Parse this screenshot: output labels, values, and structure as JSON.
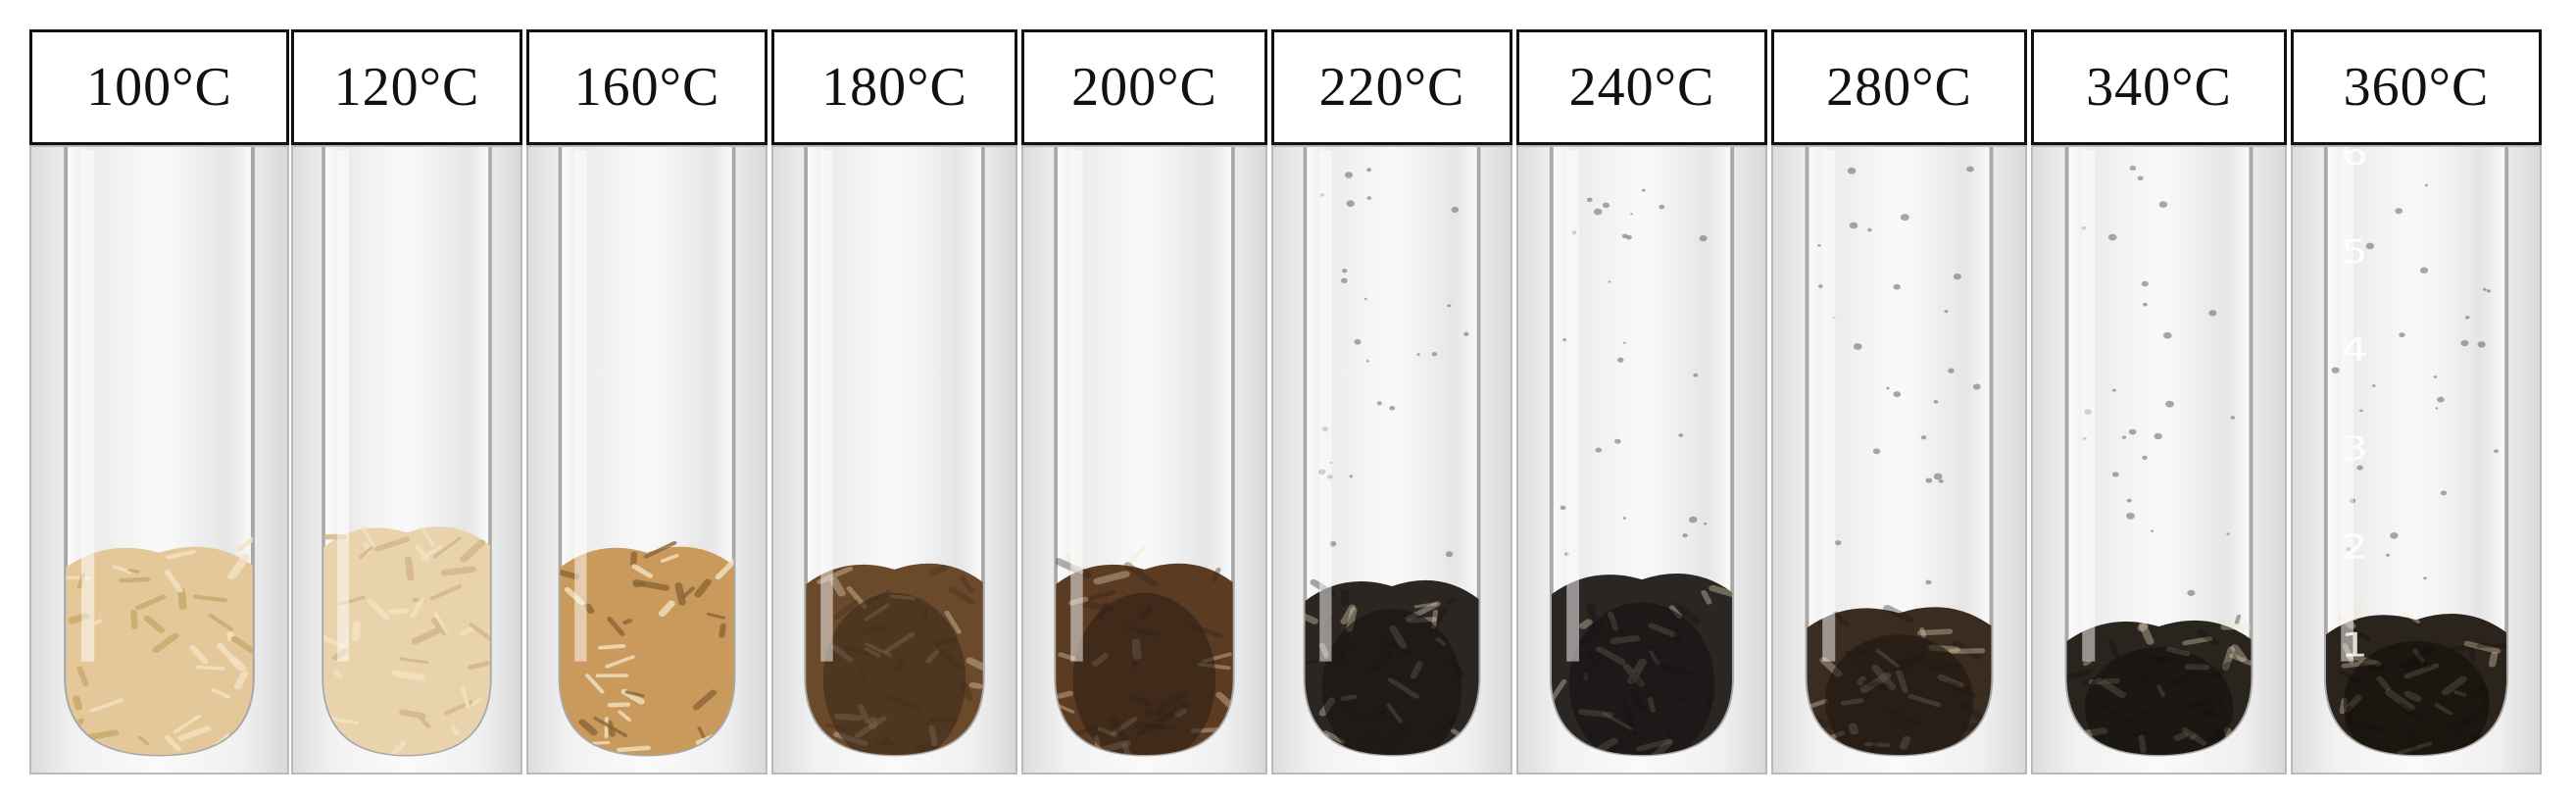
{
  "samples": [
    {
      "label": "100°C",
      "fill": "#e4c89a",
      "dark": "#c9a86a",
      "level": 0.5
    },
    {
      "label": "120°C",
      "fill": "#e9d3ad",
      "dark": "#d2b487",
      "level": 0.56
    },
    {
      "label": "160°C",
      "fill": "#c99a5c",
      "dark": "#8b6537",
      "level": 0.5
    },
    {
      "label": "180°C",
      "fill": "#6b4a2b",
      "dark": "#3b2a1a",
      "level": 0.45
    },
    {
      "label": "200°C",
      "fill": "#5b3b22",
      "dark": "#2e2016",
      "level": 0.45
    },
    {
      "label": "220°C",
      "fill": "#2b2622",
      "dark": "#151210",
      "level": 0.4
    },
    {
      "label": "240°C",
      "fill": "#2a2624",
      "dark": "#141110",
      "level": 0.42
    },
    {
      "label": "280°C",
      "fill": "#3a2c20",
      "dark": "#1d1610",
      "level": 0.32
    },
    {
      "label": "340°C",
      "fill": "#2a241e",
      "dark": "#120f0c",
      "level": 0.28
    },
    {
      "label": "360°C",
      "fill": "#2b241c",
      "dark": "#120e0a",
      "level": 0.3
    }
  ],
  "tube_scale_marks": [
    "6",
    "5",
    "4",
    "3",
    "2",
    "1"
  ]
}
